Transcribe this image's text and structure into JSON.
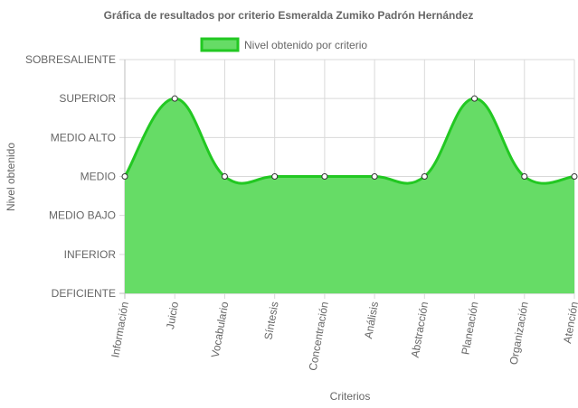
{
  "colors": {
    "fill": "#66DC66",
    "line": "#22C822",
    "grid": "#d9d9d9",
    "axis": "#666666",
    "text": "#666666",
    "point_fill": "#ffffff",
    "point_stroke": "#333333"
  },
  "chart_data": {
    "type": "area",
    "title": "Gráfica de resultados por criterio Esmeralda Zumiko Padrón Hernández",
    "xlabel": "Criterios",
    "ylabel": "Nivel obtenido",
    "legend_position": "top-center",
    "grid": true,
    "y_levels": [
      "DEFICIENTE",
      "INFERIOR",
      "MEDIO BAJO",
      "MEDIO",
      "MEDIO ALTO",
      "SUPERIOR",
      "SOBRESALIENTE"
    ],
    "ylim": [
      0,
      6
    ],
    "categories": [
      "Información",
      "Juicio",
      "Vocabulario",
      "Síntesis",
      "Concentración",
      "Análisis",
      "Abstracción",
      "Planeación",
      "Organización",
      "Atención"
    ],
    "series": [
      {
        "name": "Nivel obtenido por criterio",
        "values": [
          3,
          5,
          3,
          3,
          3,
          3,
          3,
          5,
          3,
          3
        ]
      }
    ]
  }
}
